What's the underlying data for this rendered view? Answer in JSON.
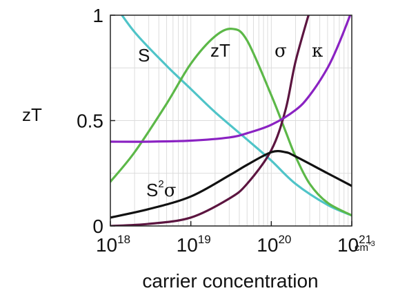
{
  "chart_data": {
    "type": "line",
    "xlabel": "carrier concentration",
    "x_unit": "cm",
    "x_unit_exp": "-3",
    "ylabel": "zT",
    "x_scale": "log",
    "xlim": [
      1e+18,
      1e+21
    ],
    "ylim": [
      0,
      1
    ],
    "grid": true,
    "x_ticks": [
      {
        "base": "10",
        "exp": "18",
        "value": 1e+18
      },
      {
        "base": "10",
        "exp": "19",
        "value": 1e+19
      },
      {
        "base": "10",
        "exp": "20",
        "value": 1e+20
      },
      {
        "base": "10",
        "exp": "21",
        "value": 1e+21
      }
    ],
    "y_ticks": [
      {
        "label": "0",
        "value": 0
      },
      {
        "label": "0.5",
        "value": 0.5
      },
      {
        "label": "1",
        "value": 1
      }
    ],
    "series": [
      {
        "name": "S",
        "color": "#4fc4c8",
        "x": [
          1e+18,
          2e+18,
          5e+18,
          1e+19,
          2e+19,
          5e+19,
          1e+20,
          2e+20,
          5e+20,
          1e+21
        ],
        "y": [
          1.08,
          0.92,
          0.76,
          0.65,
          0.54,
          0.41,
          0.31,
          0.2,
          0.1,
          0.05
        ]
      },
      {
        "name": "zT",
        "color": "#5cb848",
        "x": [
          1e+18,
          2e+18,
          5e+18,
          1e+19,
          2e+19,
          3.3e+19,
          5e+19,
          1e+20,
          1.5e+20,
          2e+20,
          3e+20,
          5e+20,
          1e+21
        ],
        "y": [
          0.21,
          0.35,
          0.58,
          0.77,
          0.9,
          0.935,
          0.88,
          0.62,
          0.45,
          0.33,
          0.2,
          0.11,
          0.05
        ]
      },
      {
        "name": "σ",
        "color": "#5c1540",
        "x": [
          1e+18,
          3e+18,
          1e+19,
          3e+19,
          5e+19,
          1e+20,
          1.5e+20,
          2e+20,
          3e+20
        ],
        "y": [
          0.0,
          0.01,
          0.04,
          0.13,
          0.2,
          0.36,
          0.55,
          0.78,
          1.02
        ]
      },
      {
        "name": "κ",
        "color": "#8a22c2",
        "x": [
          1e+18,
          3e+18,
          1e+19,
          3e+19,
          5e+19,
          1e+20,
          2e+20,
          3e+20,
          5e+20,
          7e+20,
          1e+21
        ],
        "y": [
          0.4,
          0.4,
          0.405,
          0.42,
          0.44,
          0.48,
          0.55,
          0.62,
          0.75,
          0.87,
          1.02
        ]
      },
      {
        "name": "S",
        "name_exp": "2",
        "name_tail": "σ",
        "color": "#111111",
        "x": [
          1e+18,
          3e+18,
          1e+19,
          3e+19,
          5e+19,
          1e+20,
          1.5e+20,
          2e+20,
          5e+20,
          1e+21
        ],
        "y": [
          0.04,
          0.08,
          0.14,
          0.24,
          0.29,
          0.35,
          0.35,
          0.33,
          0.25,
          0.19
        ]
      }
    ]
  }
}
